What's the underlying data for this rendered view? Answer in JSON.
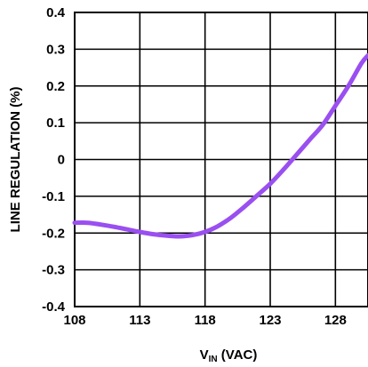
{
  "chart_data": {
    "type": "line",
    "xlabel_main": "V",
    "xlabel_sub": "IN",
    "xlabel_rest": " (VAC)",
    "ylabel": "LINE REGULATION (%)",
    "xlim": [
      108,
      130.5
    ],
    "ylim": [
      -0.4,
      0.4
    ],
    "x_ticks": [
      108,
      113,
      118,
      123,
      128
    ],
    "y_ticks": [
      0.4,
      0.3,
      0.2,
      0.1,
      0,
      -0.1,
      -0.2,
      -0.3,
      -0.4
    ],
    "grid": true,
    "line_color": "#9a4ff0",
    "series": [
      {
        "x": [
          108,
          109,
          110,
          111,
          112,
          113,
          114,
          115,
          116,
          117,
          118,
          119,
          120,
          121,
          122,
          123,
          124,
          125,
          126,
          127,
          128,
          129,
          130,
          130.5
        ],
        "y": [
          -0.172,
          -0.172,
          -0.177,
          -0.183,
          -0.19,
          -0.197,
          -0.203,
          -0.207,
          -0.209,
          -0.206,
          -0.197,
          -0.181,
          -0.158,
          -0.129,
          -0.098,
          -0.066,
          -0.028,
          0.012,
          0.053,
          0.093,
          0.146,
          0.2,
          0.262,
          0.283
        ]
      }
    ]
  }
}
